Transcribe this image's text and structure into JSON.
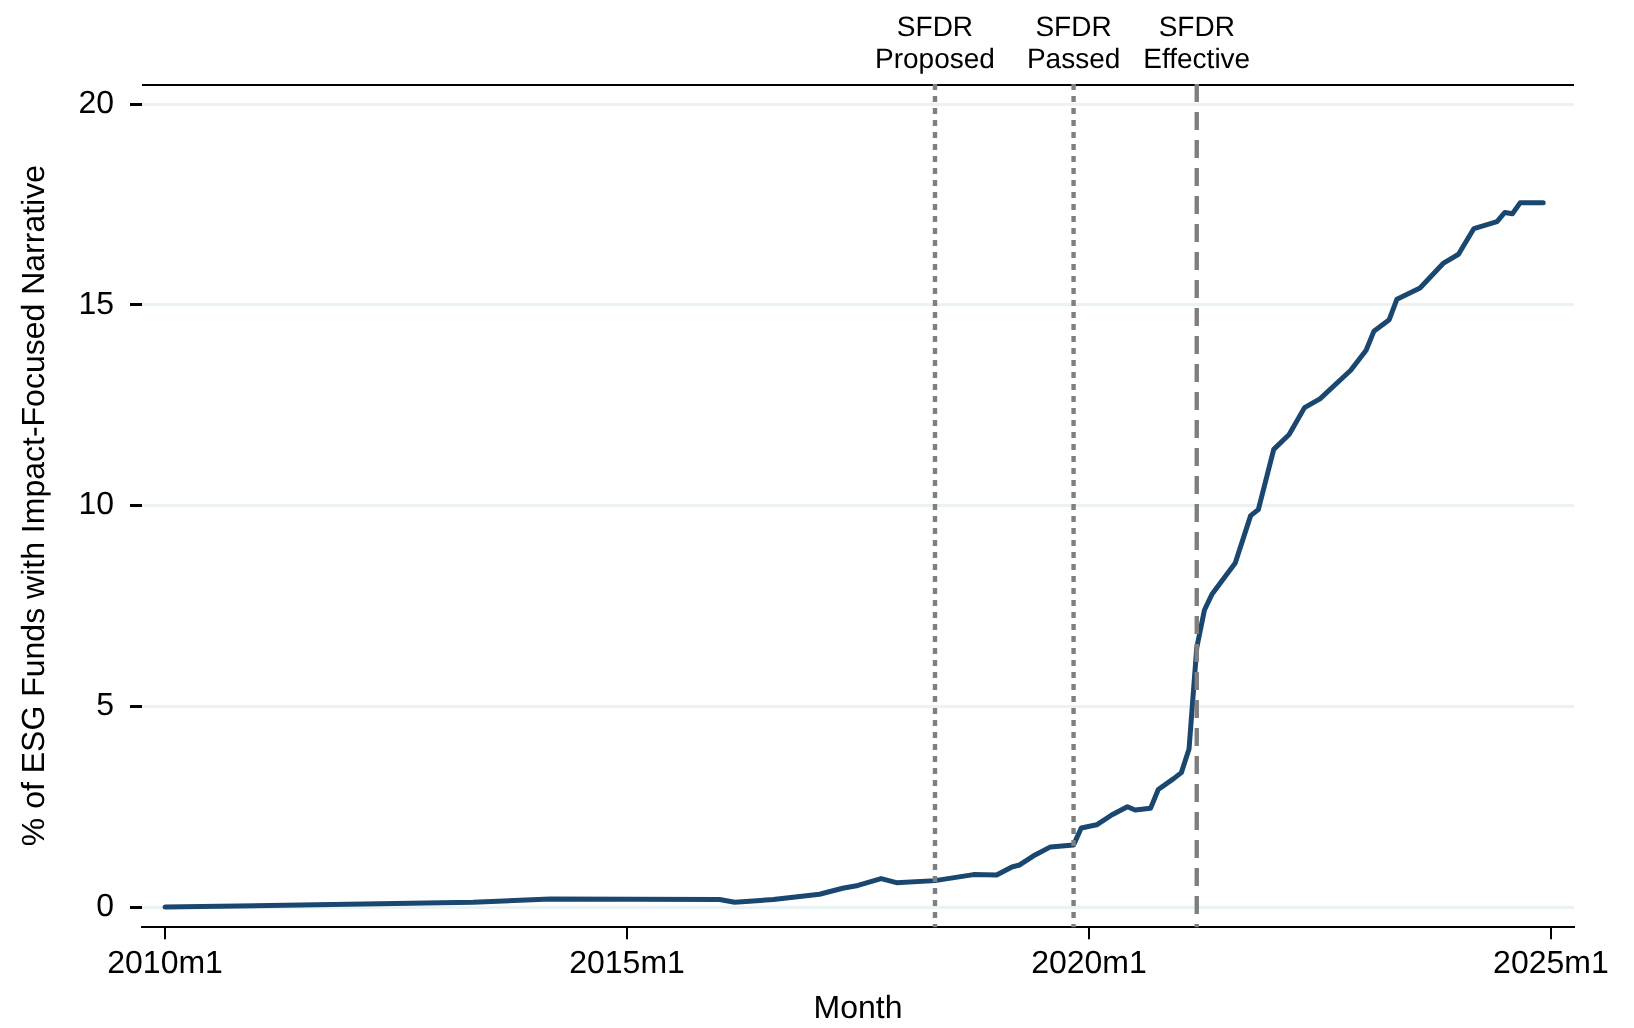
{
  "chart_data": {
    "type": "line",
    "xlabel": "Month",
    "ylabel": "% of ESG Funds with Impact-Focused Narrative",
    "x": [
      "2010-01",
      "2013-05",
      "2014-03",
      "2016-01",
      "2016-03",
      "2016-08",
      "2017-02",
      "2017-05",
      "2017-07",
      "2017-10",
      "2017-12",
      "2018-05",
      "2018-10",
      "2019-01",
      "2019-03",
      "2019-04",
      "2019-06",
      "2019-08",
      "2019-11",
      "2019-12",
      "2020-02",
      "2020-04",
      "2020-06",
      "2020-07",
      "2020-09",
      "2020-10",
      "2020-12",
      "2021-01",
      "2021-02",
      "2021-03",
      "2021-04",
      "2021-05",
      "2021-08",
      "2021-10",
      "2021-11",
      "2022-01",
      "2022-03",
      "2022-05",
      "2022-07",
      "2022-11",
      "2023-01",
      "2023-02",
      "2023-04",
      "2023-05",
      "2023-08",
      "2023-11",
      "2024-01",
      "2024-03",
      "2024-06",
      "2024-07",
      "2024-08",
      "2024-09",
      "2024-12"
    ],
    "series": [
      {
        "color": "#1a476f",
        "values": [
          0,
          0.12,
          0.2,
          0.19,
          0.12,
          0.19,
          0.32,
          0.47,
          0.54,
          0.71,
          0.61,
          0.66,
          0.81,
          0.8,
          1.0,
          1.05,
          1.3,
          1.5,
          1.55,
          1.97,
          2.05,
          2.3,
          2.5,
          2.42,
          2.46,
          2.93,
          3.2,
          3.35,
          3.94,
          6.46,
          7.4,
          7.8,
          8.57,
          9.75,
          9.9,
          11.4,
          11.77,
          12.44,
          12.66,
          13.37,
          13.87,
          14.34,
          14.63,
          15.14,
          15.42,
          16.03,
          16.26,
          16.9,
          17.07,
          17.3,
          17.27,
          17.54,
          17.54
        ]
      }
    ],
    "xlim": [
      "2009-10",
      "2025-04"
    ],
    "xticks": [
      {
        "value": "2010-01",
        "label": "2010m1"
      },
      {
        "value": "2015-01",
        "label": "2015m1"
      },
      {
        "value": "2020-01",
        "label": "2020m1"
      },
      {
        "value": "2025-01",
        "label": "2025m1"
      }
    ],
    "ylim": [
      -0.5,
      20.5
    ],
    "yticks": [
      0,
      5,
      10,
      15,
      20
    ],
    "grid": "y",
    "legend": false,
    "marker": "none",
    "line_style": "solid",
    "ref_lines": [
      {
        "axis": "x",
        "value": "2018-05",
        "label": "SFDR Proposed",
        "color": "#7f7f7f",
        "line_style": "dotted"
      },
      {
        "axis": "x",
        "value": "2019-11",
        "label": "SFDR Passed",
        "color": "#7f7f7f",
        "line_style": "dotted"
      },
      {
        "axis": "x",
        "value": "2021-03",
        "label": "SFDR Effective",
        "color": "#7f7f7f",
        "line_style": "dashed"
      }
    ]
  }
}
